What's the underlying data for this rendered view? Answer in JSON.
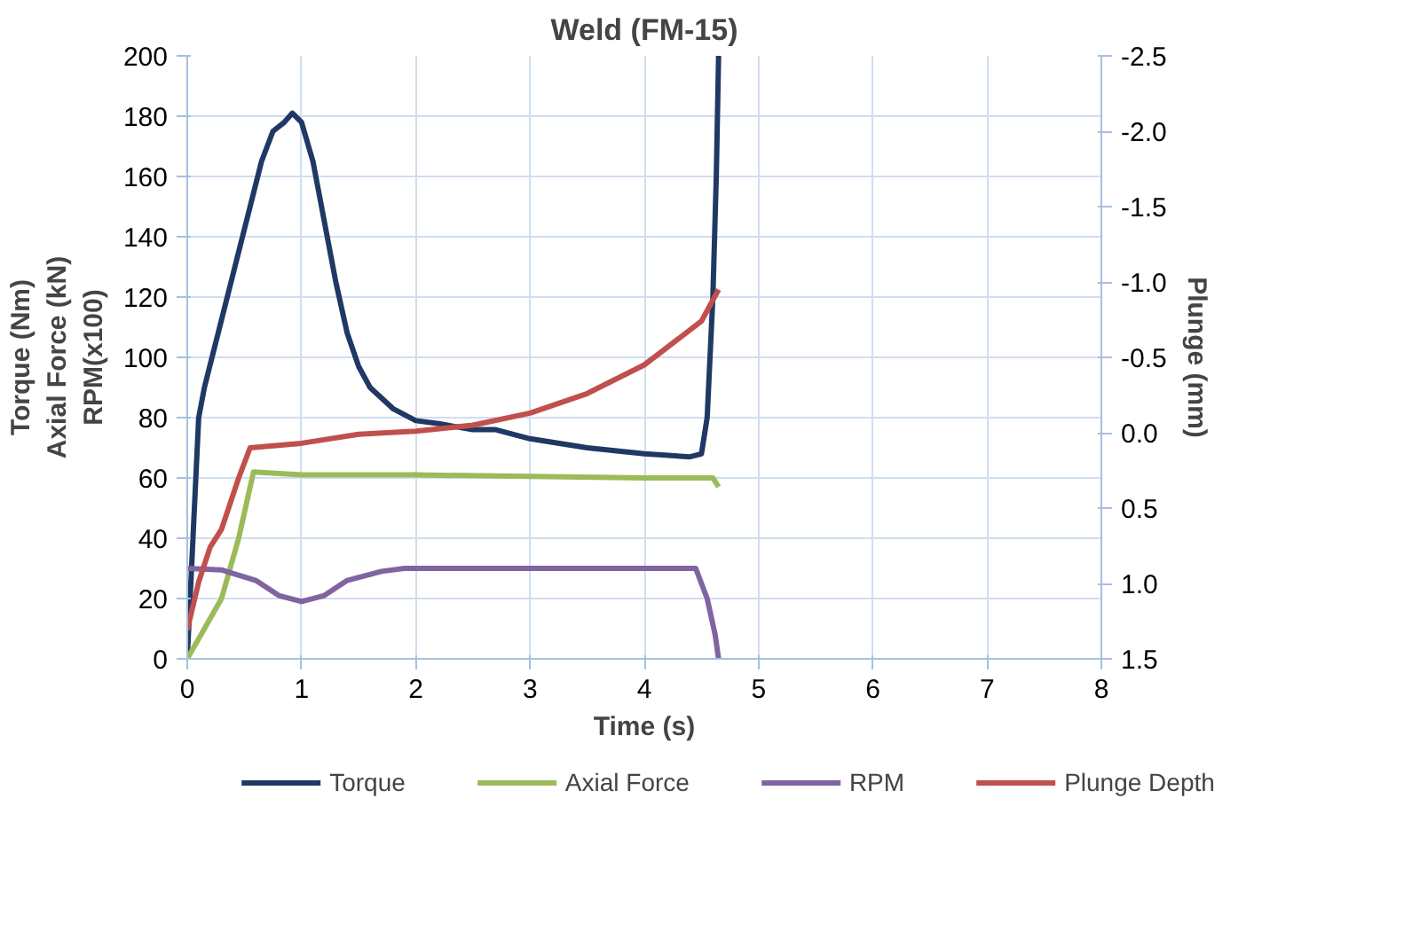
{
  "chart_data": {
    "type": "line",
    "title": "Weld (FM-15)",
    "xlabel": "Time (s)",
    "ylabel": "Torque (Nm)\nAxial Force (kN)\nRPM(x100)",
    "y2label": "Plunge (mm)",
    "xlim": [
      0,
      8
    ],
    "xticks": [
      0,
      1,
      2,
      3,
      4,
      5,
      6,
      7,
      8
    ],
    "ylim": [
      0,
      200
    ],
    "yticks": [
      0,
      20,
      40,
      60,
      80,
      100,
      120,
      140,
      160,
      180,
      200
    ],
    "y2lim": [
      1.5,
      -2.5
    ],
    "y2ticks": [
      {
        "value": 1.5,
        "label": "1.5"
      },
      {
        "value": 1.0,
        "label": "1.0"
      },
      {
        "value": 0.5,
        "label": "0.5"
      },
      {
        "value": 0.0,
        "label": "0.0"
      },
      {
        "value": -0.5,
        "label": "-0.5"
      },
      {
        "value": -1.0,
        "label": "-1.0"
      },
      {
        "value": -1.5,
        "label": "-1.5"
      },
      {
        "value": -2.0,
        "label": "-2.0"
      },
      {
        "value": -2.5,
        "label": "-2.5"
      }
    ],
    "grid": true,
    "legend": "bottom",
    "marker": "none",
    "line_style": "solid",
    "series": [
      {
        "name": "Torque",
        "color": "#203864",
        "x": [
          0,
          0.05,
          0.1,
          0.15,
          0.25,
          0.35,
          0.45,
          0.55,
          0.65,
          0.75,
          0.85,
          0.92,
          1.0,
          1.1,
          1.2,
          1.3,
          1.4,
          1.5,
          1.6,
          1.8,
          2.0,
          2.2,
          2.5,
          2.7,
          3.0,
          3.5,
          4.0,
          4.4,
          4.5,
          4.55,
          4.6,
          4.63,
          4.65
        ],
        "values": [
          0,
          40,
          80,
          90,
          105,
          120,
          135,
          150,
          165,
          175,
          178,
          181,
          178,
          165,
          145,
          125,
          108,
          97,
          90,
          83,
          79,
          78,
          76,
          76,
          73,
          70,
          68,
          67,
          68,
          80,
          120,
          160,
          200
        ]
      },
      {
        "name": "Axial Force",
        "color": "#9bbb59",
        "x": [
          0,
          0.3,
          0.45,
          0.58,
          1.0,
          2.0,
          3.0,
          4.0,
          4.6,
          4.65
        ],
        "values": [
          0,
          20,
          40,
          62,
          61,
          61,
          60.5,
          60,
          60,
          57
        ]
      },
      {
        "name": "RPM",
        "color": "#8064a2",
        "x": [
          0,
          0.3,
          0.6,
          0.8,
          1.0,
          1.2,
          1.4,
          1.7,
          1.9,
          4.45,
          4.55,
          4.62,
          4.65
        ],
        "values": [
          30,
          29.5,
          26,
          21,
          19,
          21,
          26,
          29,
          30,
          30,
          20,
          8,
          0
        ]
      },
      {
        "name": "Plunge Depth",
        "color": "#c0504d",
        "axis": "y2",
        "x": [
          0,
          0.1,
          0.2,
          0.3,
          0.45,
          0.55,
          1.0,
          1.5,
          2.0,
          2.5,
          3.0,
          3.5,
          4.0,
          4.5,
          4.65
        ],
        "values": [
          1.31,
          0.99,
          0.76,
          0.64,
          0.3,
          0.1,
          0.07,
          0.01,
          -0.01,
          -0.05,
          -0.13,
          -0.26,
          -0.45,
          -0.74,
          -0.95
        ]
      }
    ]
  }
}
